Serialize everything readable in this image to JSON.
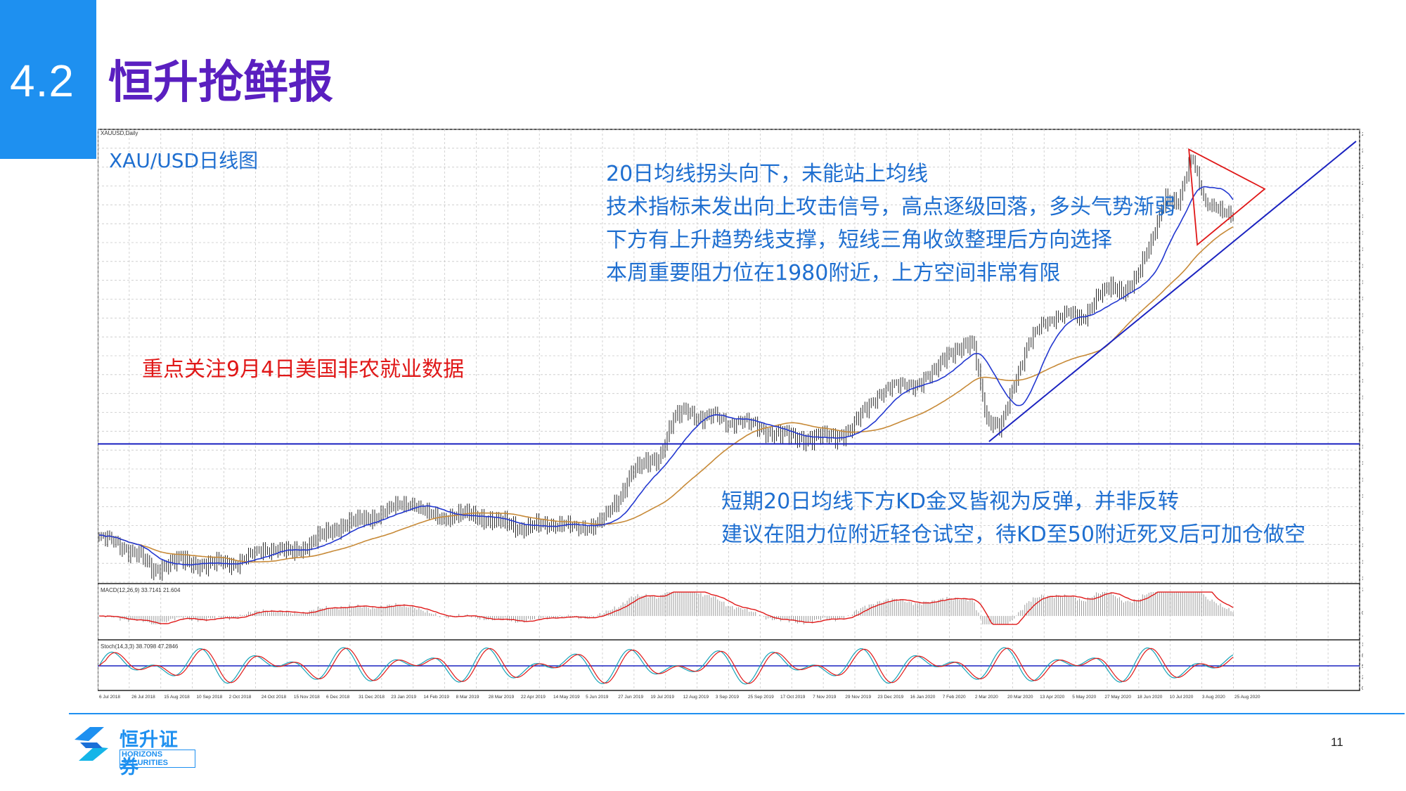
{
  "slide": {
    "section_number": "4.2",
    "title": "恒升抢鲜报",
    "page_number": "11",
    "brand_name": "恒升证券",
    "brand_english": "HORIZONS SECURITIES",
    "accent_color": "#1e90f0",
    "title_color": "#5a1fc0"
  },
  "annotations": {
    "chart_label": "XAU/USD日线图",
    "top_lines": [
      "20日均线拐头向下，未能站上均线",
      "技术指标未发出向上攻击信号，高点逐级回落，多头气势渐弱",
      "下方有上升趋势线支撑，短线三角收敛整理后方向选择",
      "本周重要阻力位在1980附近，上方空间非常有限"
    ],
    "red_note": "重点关注9月4日美国非农就业数据",
    "bottom_lines": [
      "短期20日均线下方KD金叉皆视为反弹，并非反转",
      "建议在阻力位附近轻仓试空，待KD至50附近死叉后可加仓做空"
    ]
  },
  "chart_data": {
    "type": "line",
    "instrument_header": "XAUUSD,Daily",
    "x_tick_labels": [
      "6 Jul 2018",
      "26 Jul 2018",
      "15 Aug 2018",
      "10 Sep 2018",
      "2 Oct 2018",
      "24 Oct 2018",
      "15 Nov 2018",
      "6 Dec 2018",
      "31 Dec 2018",
      "23 Jan 2019",
      "14 Feb 2019",
      "8 Mar 2019",
      "28 Mar 2019",
      "22 Apr 2019",
      "14 May 2019",
      "5 Jun 2019",
      "27 Jun 2019",
      "19 Jul 2019",
      "12 Aug 2019",
      "3 Sep 2019",
      "25 Sep 2019",
      "17 Oct 2019",
      "7 Nov 2019",
      "29 Nov 2019",
      "23 Dec 2019",
      "16 Jan 2020",
      "7 Feb 2020",
      "2 Mar 2020",
      "20 Mar 2020",
      "13 Apr 2020",
      "5 May 2020",
      "27 May 2020",
      "18 Jun 2020",
      "10 Jul 2020",
      "3 Aug 2020",
      "25 Aug 2020"
    ],
    "price_axis_labels": [
      "2103.70",
      "2069.60",
      "2041.34",
      "2003.66",
      "1969.58",
      "1935.50",
      "1901.42",
      "1867.34",
      "1833.26",
      "1799.18",
      "1765.10",
      "1731.02",
      "1696.94",
      "1662.86",
      "1628.78",
      "1594.70",
      "1560.62",
      "1526.54",
      "1492.46",
      "1458.38",
      "1424.30",
      "1390.22",
      "1356.14",
      "1322.06",
      "1287.98",
      "1253.90",
      "1219.82",
      "1185.74"
    ],
    "ylim": [
      1160,
      2110
    ],
    "close": [
      1255,
      1248,
      1230,
      1215,
      1182,
      1198,
      1205,
      1198,
      1195,
      1203,
      1200,
      1215,
      1232,
      1230,
      1222,
      1232,
      1252,
      1265,
      1282,
      1288,
      1295,
      1310,
      1322,
      1330,
      1305,
      1295,
      1300,
      1302,
      1295,
      1285,
      1282,
      1272,
      1278,
      1282,
      1285,
      1272,
      1280,
      1295,
      1330,
      1395,
      1405,
      1420,
      1500,
      1520,
      1505,
      1510,
      1495,
      1502,
      1488,
      1475,
      1470,
      1462,
      1460,
      1465,
      1465,
      1478,
      1520,
      1555,
      1570,
      1578,
      1575,
      1595,
      1640,
      1645,
      1660,
      1500,
      1480,
      1580,
      1660,
      1700,
      1720,
      1725,
      1710,
      1760,
      1775,
      1770,
      1800,
      1870,
      1970,
      1950,
      2060,
      1955,
      1940,
      1935
    ],
    "support_level": 1450,
    "kd_reference_level": 50,
    "series": [
      {
        "name": "MA20",
        "color": "#2338d0"
      },
      {
        "name": "MA60",
        "color": "#c78a38"
      }
    ],
    "macd_header": "MACD(12,26,9) 33.7141 21.604",
    "stoch_header": "Stoch(14,3,3) 38.7098 47.2846",
    "macd_axis_labels": [
      "77.136",
      "0.00",
      "-36.88"
    ],
    "stoch_axis_labels": [
      "100",
      "80",
      "50.0000",
      "20",
      "0"
    ]
  }
}
